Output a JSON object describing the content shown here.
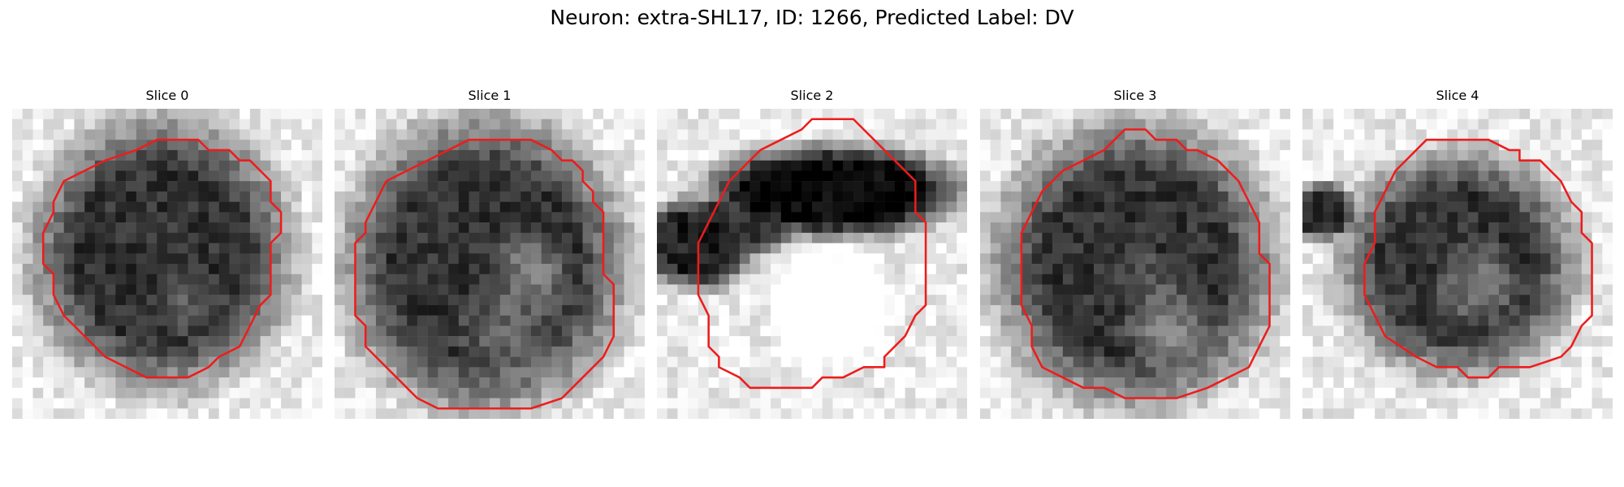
{
  "figure": {
    "title": "Neuron: extra-SHL17, ID: 1266, Predicted Label: DV"
  },
  "panels": [
    {
      "title": "Slice 0"
    },
    {
      "title": "Slice 1"
    },
    {
      "title": "Slice 2"
    },
    {
      "title": "Slice 3"
    },
    {
      "title": "Slice 4"
    }
  ],
  "colors": {
    "contour": "#ee1c1c",
    "background": "#ffffff"
  }
}
